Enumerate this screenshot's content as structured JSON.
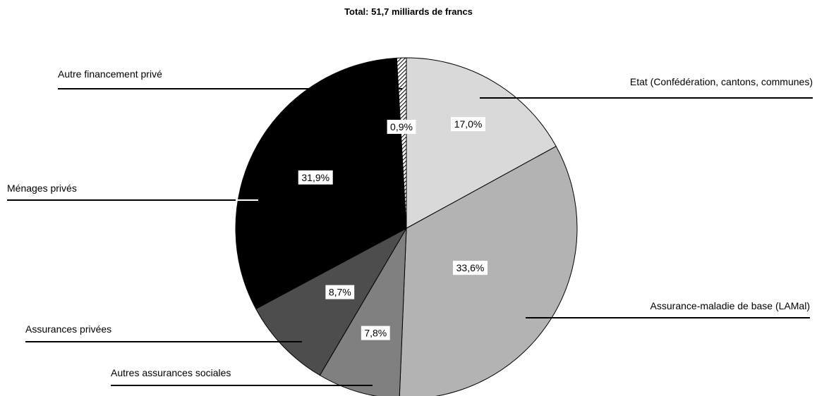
{
  "chart_data": {
    "type": "pie",
    "title": "Total: 51,7 milliards de francs",
    "slices": [
      {
        "name": "Etat (Confédération, cantons, communes)",
        "value": 17.0,
        "label": "17,0%",
        "color": "#d9d9d9"
      },
      {
        "name": "Assurance-maladie de base (LAMal)",
        "value": 33.6,
        "label": "33,6%",
        "color": "#b3b3b3"
      },
      {
        "name": "Autres assurances sociales",
        "value": 7.8,
        "label": "7,8%",
        "color": "#808080"
      },
      {
        "name": "Assurances privées",
        "value": 8.7,
        "label": "8,7%",
        "color": "#4d4d4d"
      },
      {
        "name": "Ménages privés",
        "value": 31.9,
        "label": "31,9%",
        "color": "#000000"
      },
      {
        "name": "Autre financement privé",
        "value": 0.9,
        "label": "0,9%",
        "color": "hatch"
      }
    ]
  }
}
